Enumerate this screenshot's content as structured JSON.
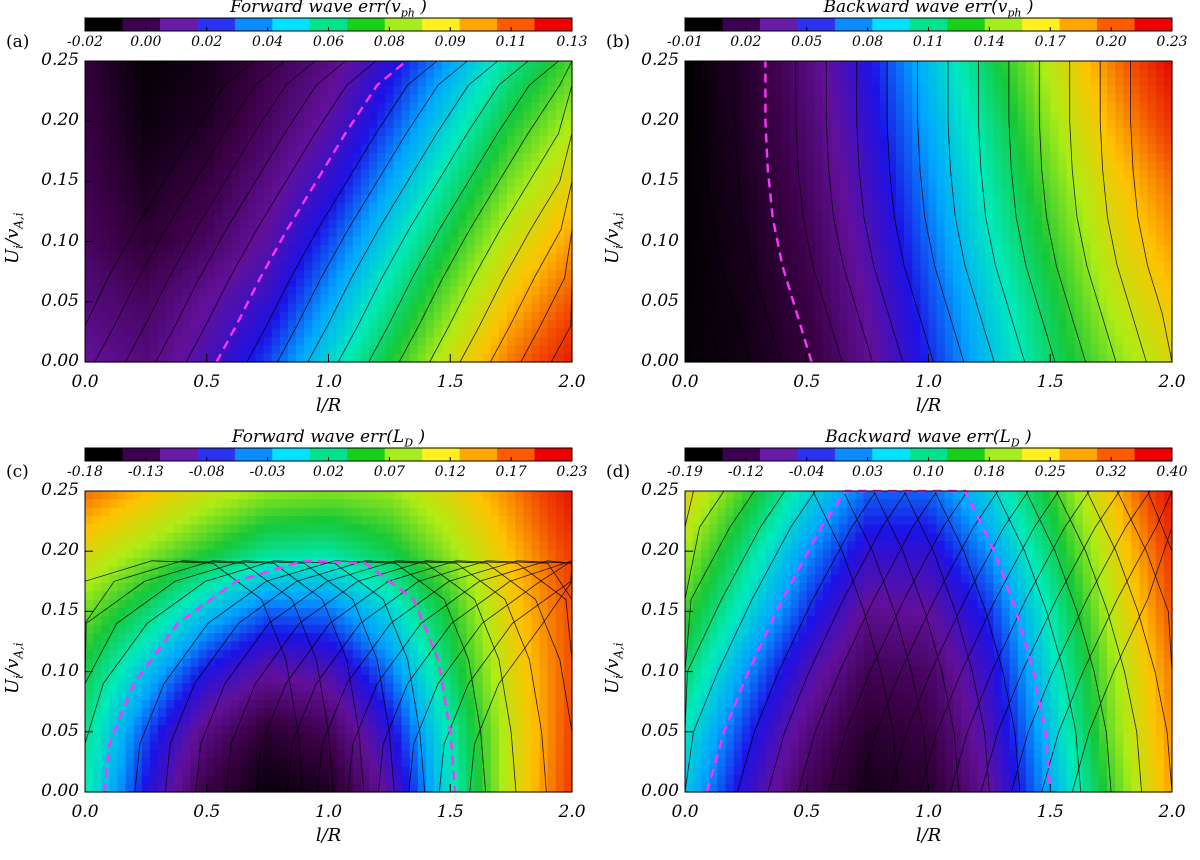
{
  "chart_data": [
    {
      "type": "heatmap",
      "panel_label": "(a)",
      "title_prefix": "Forward wave err(",
      "title_symbol": "v",
      "title_sub": "ph",
      "title_suffix": ")",
      "colorbar_ticks": [
        "-0.02",
        "0.00",
        "0.02",
        "0.04",
        "0.06",
        "0.08",
        "0.09",
        "0.11",
        "0.13"
      ],
      "clim": [
        -0.02,
        0.13
      ],
      "xlabel": "l/R",
      "ylabel_main": "U",
      "ylabel_sub_1": "i",
      "ylabel_mid": "/v",
      "ylabel_sub_2": "A,i",
      "xlim": [
        0.0,
        2.0
      ],
      "ylim": [
        0.0,
        0.25
      ],
      "xticks": [
        "0.0",
        "0.5",
        "1.0",
        "1.5",
        "2.0"
      ],
      "yticks": [
        "0.00",
        "0.05",
        "0.10",
        "0.15",
        "0.20",
        "0.25"
      ],
      "zero_contour": [
        [
          0.54,
          0.0
        ],
        [
          0.62,
          0.03
        ],
        [
          0.72,
          0.07
        ],
        [
          0.83,
          0.11
        ],
        [
          0.95,
          0.15
        ],
        [
          1.07,
          0.19
        ],
        [
          1.2,
          0.23
        ],
        [
          1.32,
          0.25
        ]
      ],
      "grid_values": [
        [
          0.01,
          0.005,
          0.015,
          0.03,
          0.05,
          0.07,
          0.09,
          0.11,
          0.125
        ],
        [
          0.005,
          0.0,
          0.01,
          0.02,
          0.04,
          0.06,
          0.08,
          0.1,
          0.115
        ],
        [
          0.0,
          -0.008,
          0.0,
          0.012,
          0.03,
          0.05,
          0.07,
          0.09,
          0.105
        ],
        [
          -0.003,
          -0.013,
          -0.006,
          0.006,
          0.02,
          0.04,
          0.06,
          0.08,
          0.095
        ],
        [
          -0.005,
          -0.017,
          -0.012,
          0.0,
          0.012,
          0.03,
          0.05,
          0.07,
          0.085
        ],
        [
          -0.007,
          -0.019,
          -0.015,
          -0.004,
          0.006,
          0.022,
          0.04,
          0.06,
          0.075
        ]
      ]
    },
    {
      "type": "heatmap",
      "panel_label": "(b)",
      "title_prefix": "Backward wave err(",
      "title_symbol": "v",
      "title_sub": "ph",
      "title_suffix": ")",
      "colorbar_ticks": [
        "-0.01",
        "0.02",
        "0.05",
        "0.08",
        "0.11",
        "0.14",
        "0.17",
        "0.20",
        "0.23"
      ],
      "clim": [
        -0.01,
        0.23
      ],
      "xlabel": "l/R",
      "ylabel_main": "U",
      "ylabel_sub_1": "i",
      "ylabel_mid": "/v",
      "ylabel_sub_2": "A,i",
      "xlim": [
        0.0,
        2.0
      ],
      "ylim": [
        0.0,
        0.25
      ],
      "xticks": [
        "0.0",
        "0.5",
        "1.0",
        "1.5",
        "2.0"
      ],
      "yticks": [
        "0.00",
        "0.05",
        "0.10",
        "0.15",
        "0.20",
        "0.25"
      ],
      "zero_contour": [
        [
          0.52,
          0.0
        ],
        [
          0.46,
          0.04
        ],
        [
          0.4,
          0.08
        ],
        [
          0.36,
          0.12
        ],
        [
          0.34,
          0.16
        ],
        [
          0.33,
          0.2
        ],
        [
          0.33,
          0.25
        ]
      ],
      "grid_values": [
        [
          -0.008,
          -0.003,
          0.01,
          0.035,
          0.065,
          0.095,
          0.125,
          0.15,
          0.17
        ],
        [
          -0.009,
          -0.002,
          0.014,
          0.04,
          0.07,
          0.1,
          0.13,
          0.16,
          0.18
        ],
        [
          -0.01,
          0.0,
          0.018,
          0.045,
          0.076,
          0.108,
          0.138,
          0.168,
          0.19
        ],
        [
          -0.01,
          0.002,
          0.022,
          0.05,
          0.082,
          0.114,
          0.146,
          0.176,
          0.2
        ],
        [
          -0.01,
          0.004,
          0.026,
          0.055,
          0.088,
          0.12,
          0.154,
          0.186,
          0.215
        ],
        [
          -0.01,
          0.006,
          0.03,
          0.06,
          0.094,
          0.128,
          0.162,
          0.196,
          0.228
        ]
      ]
    },
    {
      "type": "heatmap",
      "panel_label": "(c)",
      "title_prefix": "Forward wave err(",
      "title_symbol": "L",
      "title_sub": "D",
      "title_suffix": ")",
      "colorbar_ticks": [
        "-0.18",
        "-0.13",
        "-0.08",
        "-0.03",
        "0.02",
        "0.07",
        "0.12",
        "0.17",
        "0.23"
      ],
      "clim": [
        -0.18,
        0.23
      ],
      "xlabel": "l/R",
      "ylabel_main": "U",
      "ylabel_sub_1": "i",
      "ylabel_mid": "/v",
      "ylabel_sub_2": "A,i",
      "xlim": [
        0.0,
        2.0
      ],
      "ylim": [
        0.0,
        0.25
      ],
      "xticks": [
        "0.0",
        "0.5",
        "1.0",
        "1.5",
        "2.0"
      ],
      "yticks": [
        "0.00",
        "0.05",
        "0.10",
        "0.15",
        "0.20",
        "0.25"
      ],
      "zero_contour": [
        [
          0.08,
          0.0
        ],
        [
          0.1,
          0.04
        ],
        [
          0.2,
          0.09
        ],
        [
          0.38,
          0.14
        ],
        [
          0.62,
          0.175
        ],
        [
          0.9,
          0.192
        ],
        [
          1.15,
          0.19
        ],
        [
          1.35,
          0.16
        ],
        [
          1.45,
          0.11
        ],
        [
          1.5,
          0.05
        ],
        [
          1.52,
          0.0
        ]
      ],
      "grid_values": [
        [
          0.03,
          -0.06,
          -0.14,
          -0.175,
          -0.16,
          -0.09,
          0.02,
          0.12,
          0.2
        ],
        [
          0.04,
          -0.04,
          -0.11,
          -0.15,
          -0.13,
          -0.065,
          0.03,
          0.12,
          0.195
        ],
        [
          0.06,
          0.0,
          -0.06,
          -0.095,
          -0.085,
          -0.03,
          0.05,
          0.13,
          0.19
        ],
        [
          0.09,
          0.05,
          0.0,
          -0.035,
          -0.03,
          0.01,
          0.07,
          0.14,
          0.19
        ],
        [
          0.13,
          0.1,
          0.07,
          0.04,
          0.035,
          0.06,
          0.1,
          0.15,
          0.2
        ],
        [
          0.18,
          0.15,
          0.12,
          0.1,
          0.095,
          0.1,
          0.13,
          0.17,
          0.22
        ]
      ]
    },
    {
      "type": "heatmap",
      "panel_label": "(d)",
      "title_prefix": "Backward wave err(",
      "title_symbol": "L",
      "title_sub": "D",
      "title_suffix": ")",
      "colorbar_ticks": [
        "-0.19",
        "-0.12",
        "-0.04",
        "0.03",
        "0.10",
        "0.18",
        "0.25",
        "0.32",
        "0.40"
      ],
      "clim": [
        -0.19,
        0.4
      ],
      "xlabel": "l/R",
      "ylabel_main": "U",
      "ylabel_sub_1": "i",
      "ylabel_mid": "/v",
      "ylabel_sub_2": "A,i",
      "xlim": [
        0.0,
        2.0
      ],
      "ylim": [
        0.0,
        0.25
      ],
      "xticks": [
        "0.0",
        "0.5",
        "1.0",
        "1.5",
        "2.0"
      ],
      "yticks": [
        "0.00",
        "0.05",
        "0.10",
        "0.15",
        "0.20",
        "0.25"
      ],
      "zero_contour": [
        [
          0.09,
          0.0
        ],
        [
          0.16,
          0.05
        ],
        [
          0.26,
          0.1
        ],
        [
          0.4,
          0.16
        ],
        [
          0.56,
          0.22
        ],
        [
          0.66,
          0.25
        ],
        [
          1.15,
          0.25
        ],
        [
          1.27,
          0.2
        ],
        [
          1.36,
          0.15
        ],
        [
          1.43,
          0.1
        ],
        [
          1.48,
          0.05
        ],
        [
          1.5,
          0.0
        ]
      ],
      "grid_values": [
        [
          0.07,
          -0.03,
          -0.12,
          -0.17,
          -0.15,
          -0.07,
          0.05,
          0.18,
          0.3
        ],
        [
          0.1,
          0.0,
          -0.09,
          -0.15,
          -0.13,
          -0.05,
          0.07,
          0.2,
          0.31
        ],
        [
          0.14,
          0.04,
          -0.05,
          -0.12,
          -0.11,
          -0.03,
          0.09,
          0.21,
          0.32
        ],
        [
          0.18,
          0.09,
          0.0,
          -0.08,
          -0.07,
          0.0,
          0.11,
          0.23,
          0.34
        ],
        [
          0.22,
          0.13,
          0.04,
          -0.03,
          -0.03,
          0.04,
          0.14,
          0.25,
          0.36
        ],
        [
          0.26,
          0.18,
          0.09,
          0.02,
          0.02,
          0.08,
          0.17,
          0.28,
          0.39
        ]
      ]
    }
  ]
}
